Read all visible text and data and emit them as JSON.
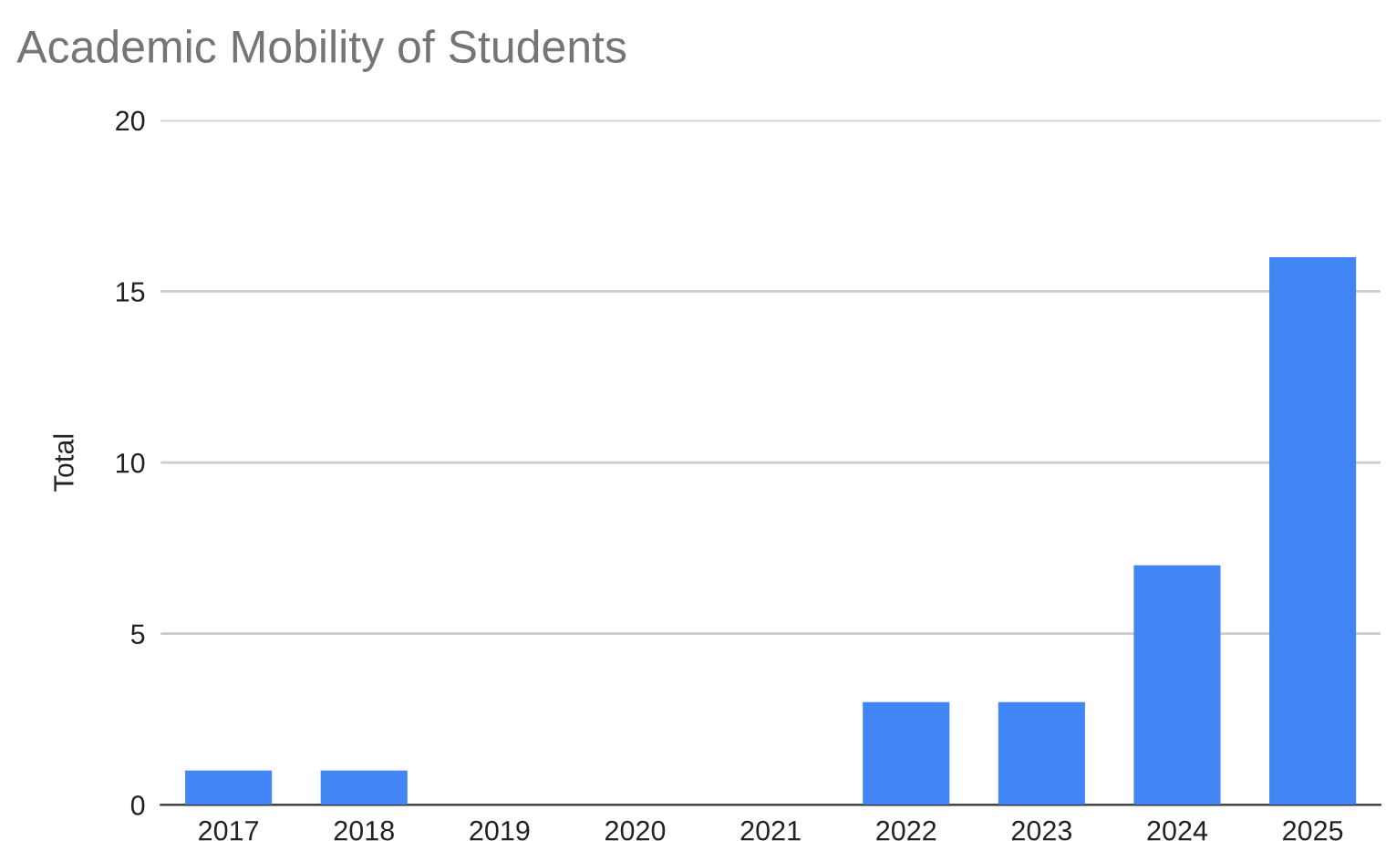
{
  "chart_data": {
    "type": "bar",
    "title": "Academic Mobility of Students",
    "ylabel": "Total",
    "categories": [
      "2017",
      "2018",
      "2019",
      "2020",
      "2021",
      "2022",
      "2023",
      "2024",
      "2025"
    ],
    "values": [
      1,
      1,
      0,
      0,
      0,
      3,
      3,
      7,
      16
    ],
    "color": "#4285f4",
    "ylim": [
      0,
      20
    ],
    "yticks": [
      0,
      5,
      10,
      15,
      20
    ],
    "grid": "y",
    "legend": false
  }
}
